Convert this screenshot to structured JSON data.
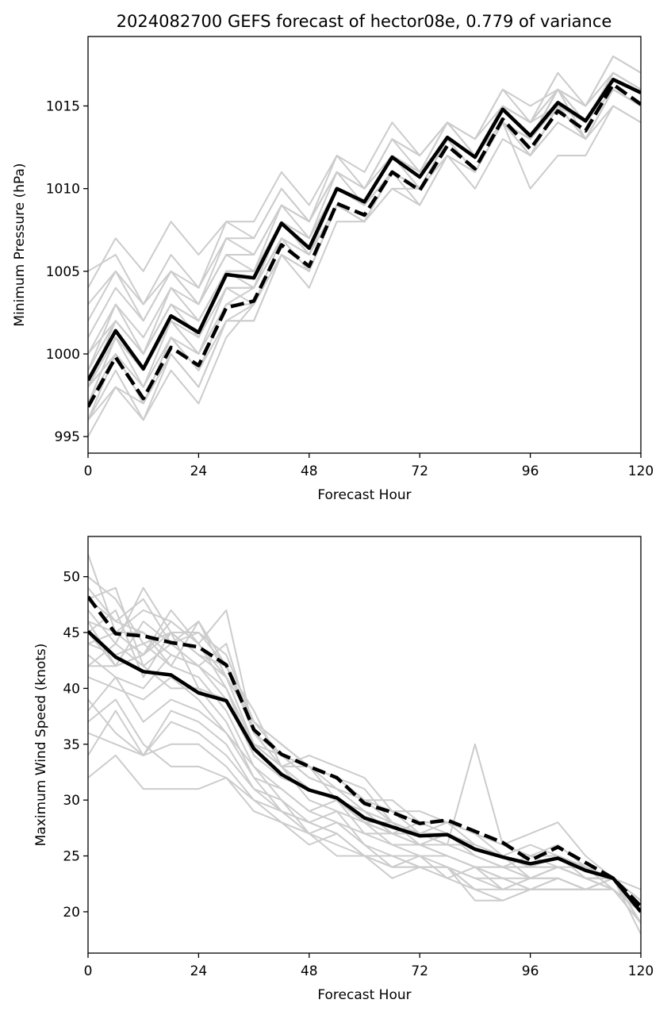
{
  "title": "2024082700 GEFS forecast of hector08e, 0.779 of variance",
  "colors": {
    "member": "#cccccc",
    "highlight": "#000000",
    "background": "#ffffff"
  },
  "chart_data": [
    {
      "type": "line",
      "xlabel": "Forecast Hour",
      "ylabel": "Minimum Pressure (hPa)",
      "xlim": [
        0,
        120
      ],
      "ylim": [
        994,
        1019.2
      ],
      "xticks": [
        0,
        24,
        48,
        72,
        96,
        120
      ],
      "yticks": [
        995,
        1000,
        1005,
        1010,
        1015
      ],
      "grid": false,
      "legend": "none",
      "x": [
        0,
        6,
        12,
        18,
        24,
        30,
        36,
        42,
        48,
        54,
        60,
        66,
        72,
        78,
        84,
        90,
        96,
        102,
        108,
        114,
        120
      ],
      "members": [
        [
          999,
          1002,
          1000,
          1003,
          1002,
          1005,
          1005,
          1008,
          1007,
          1010,
          1009,
          1012,
          1011,
          1014,
          1012,
          1015,
          1013,
          1016,
          1015,
          1017,
          1016
        ],
        [
          998,
          1001,
          999,
          1002,
          1001,
          1004,
          1004,
          1007,
          1006,
          1010,
          1009,
          1012,
          1011,
          1013,
          1012,
          1015,
          1013,
          1015,
          1014,
          1016,
          1015
        ],
        [
          997,
          1000,
          997,
          1001,
          999,
          1003,
          1003,
          1007,
          1005,
          1009,
          1008,
          1011,
          1010,
          1013,
          1011,
          1014,
          1012,
          1015,
          1014,
          1016,
          1015
        ],
        [
          996,
          999,
          996,
          1000,
          998,
          1002,
          1002,
          1006,
          1005,
          1009,
          1008,
          1011,
          1009,
          1012,
          1011,
          1014,
          1012,
          1014,
          1013,
          1016,
          1015
        ],
        [
          995,
          998,
          996,
          999,
          997,
          1001,
          1003,
          1006,
          1004,
          1008,
          1008,
          1010,
          1009,
          1012,
          1010,
          1013,
          1012,
          1015,
          1013,
          1015,
          1014
        ],
        [
          1000,
          1003,
          1001,
          1004,
          1003,
          1006,
          1006,
          1009,
          1008,
          1011,
          1010,
          1013,
          1012,
          1014,
          1013,
          1016,
          1014,
          1017,
          1015,
          1018,
          1017
        ],
        [
          1004,
          1007,
          1005,
          1008,
          1006,
          1008,
          1008,
          1011,
          1009,
          1012,
          1011,
          1014,
          1012,
          1014,
          1013,
          1016,
          1015,
          1016,
          1015,
          1018,
          1017
        ],
        [
          1002,
          1005,
          1003,
          1006,
          1004,
          1007,
          1007,
          1010,
          1008,
          1011,
          1010,
          1013,
          1011,
          1014,
          1012,
          1015,
          1014,
          1016,
          1015,
          1017,
          1016
        ],
        [
          1005,
          1006,
          1003,
          1005,
          1004,
          1008,
          1007,
          1010,
          1008,
          1012,
          1010,
          1013,
          1012,
          1014,
          1013,
          1015,
          1014,
          1016,
          1015,
          1017,
          1016
        ],
        [
          997,
          1001,
          998,
          1002,
          1000,
          1004,
          1004,
          1008,
          1006,
          1010,
          1009,
          1012,
          1010,
          1013,
          1012,
          1015,
          1013,
          1015,
          1014,
          1016,
          1015
        ],
        [
          998,
          1002,
          1000,
          1003,
          1001,
          1005,
          1005,
          1008,
          1007,
          1010,
          1009,
          1012,
          1010,
          1013,
          1012,
          1014,
          1013,
          1016,
          1014,
          1017,
          1016
        ],
        [
          1001,
          1004,
          1002,
          1005,
          1003,
          1006,
          1005,
          1009,
          1007,
          1011,
          1010,
          1012,
          1011,
          1014,
          1012,
          1015,
          1013,
          1016,
          1014,
          1017,
          1016
        ],
        [
          999,
          1003,
          1000,
          1004,
          1002,
          1005,
          1004,
          1008,
          1006,
          1010,
          1009,
          1011,
          1010,
          1013,
          1012,
          1014,
          1013,
          1016,
          1014,
          1017,
          1016
        ],
        [
          996,
          998,
          997,
          1000,
          998,
          1002,
          1003,
          1006,
          1005,
          1009,
          1008,
          1011,
          1010,
          1012,
          1011,
          1014,
          1010,
          1012,
          1012,
          1015,
          1014
        ],
        [
          1003,
          1005,
          1002,
          1005,
          1003,
          1007,
          1006,
          1009,
          1008,
          1011,
          1009,
          1012,
          1011,
          1013,
          1012,
          1015,
          1014,
          1015,
          1014,
          1017,
          1016
        ],
        [
          998,
          1000,
          998,
          1001,
          1000,
          1003,
          1004,
          1007,
          1006,
          1009,
          1008,
          1011,
          1010,
          1013,
          1011,
          1014,
          1012,
          1015,
          1013,
          1016,
          1015
        ],
        [
          997,
          1001,
          999,
          1002,
          1000,
          1004,
          1003,
          1007,
          1005,
          1009,
          1008,
          1011,
          1010,
          1012,
          1011,
          1014,
          1013,
          1016,
          1013,
          1016,
          1015
        ],
        [
          1000,
          1002,
          1000,
          1003,
          1002,
          1005,
          1005,
          1008,
          1007,
          1010,
          1009,
          1012,
          1011,
          1013,
          1012,
          1015,
          1014,
          1017,
          null,
          null,
          null
        ],
        [
          999,
          1002,
          1000,
          1003,
          1002,
          1005,
          1004,
          1008,
          1006,
          1010,
          1009,
          1011,
          1010,
          1013,
          1012,
          1014,
          1013,
          1015,
          1013,
          null,
          null
        ],
        [
          996,
          1000,
          997,
          1001,
          999,
          1002,
          1002,
          1006,
          1005,
          1009,
          1008,
          1010,
          1010,
          1013,
          1011,
          1014,
          1012,
          1014,
          1013,
          1016,
          1015
        ]
      ],
      "series": [
        {
          "values": [
            998.4,
            1001.4,
            999.1,
            1002.3,
            1001.3,
            1004.8,
            1004.6,
            1007.9,
            1006.4,
            1010.0,
            1009.2,
            1011.9,
            1010.7,
            1013.1,
            1011.9,
            1014.8,
            1013.2,
            1015.2,
            1014.1,
            1016.6,
            1015.8
          ],
          "style": "solid"
        },
        {
          "values": [
            996.8,
            999.8,
            997.3,
            1000.4,
            999.3,
            1002.8,
            1003.2,
            1006.6,
            1005.3,
            1009.1,
            1008.4,
            1011.0,
            1009.9,
            1012.6,
            1011.2,
            1014.2,
            1012.4,
            1014.7,
            1013.5,
            1016.3,
            1015.1
          ],
          "style": "dashed"
        }
      ]
    },
    {
      "type": "line",
      "xlabel": "Forecast Hour",
      "ylabel": "Maximum Wind Speed (knots)",
      "xlim": [
        0,
        120
      ],
      "ylim": [
        16.3,
        53.6
      ],
      "xticks": [
        0,
        24,
        48,
        72,
        96,
        120
      ],
      "yticks": [
        20,
        25,
        30,
        35,
        40,
        45,
        50
      ],
      "grid": false,
      "legend": "none",
      "x": [
        0,
        6,
        12,
        18,
        24,
        30,
        36,
        42,
        48,
        54,
        60,
        66,
        72,
        78,
        84,
        90,
        96,
        102,
        108,
        114,
        120
      ],
      "members": [
        [
          52,
          45,
          47,
          46,
          44,
          47,
          36,
          34,
          33,
          30,
          29,
          28,
          27,
          28,
          26,
          25,
          24,
          25,
          24,
          23,
          21
        ],
        [
          50,
          48,
          44,
          45,
          43,
          41,
          37,
          35,
          33,
          32,
          30,
          29,
          28,
          28,
          27,
          26,
          25,
          26,
          24,
          23,
          20
        ],
        [
          49,
          46,
          45,
          43,
          42,
          40,
          35,
          33,
          31,
          30,
          28,
          28,
          27,
          26,
          26,
          25,
          24,
          25,
          24,
          23,
          20
        ],
        [
          48,
          49,
          42,
          44,
          46,
          42,
          36,
          34,
          32,
          31,
          29,
          27,
          28,
          27,
          26,
          25,
          23,
          24,
          23,
          23,
          21
        ],
        [
          47,
          44,
          49,
          45,
          43,
          42,
          38,
          33,
          34,
          33,
          32,
          29,
          29,
          28,
          27,
          25,
          24,
          25,
          23,
          22,
          20
        ],
        [
          46,
          42,
          43,
          47,
          44,
          40,
          34,
          32,
          31,
          30,
          28,
          27,
          26,
          26,
          25,
          24,
          23,
          24,
          23,
          23,
          20
        ],
        [
          45,
          47,
          41,
          45,
          45,
          43,
          37,
          35,
          33,
          31,
          30,
          29,
          27,
          27,
          25,
          24,
          25,
          25,
          24,
          23,
          21
        ],
        [
          44,
          43,
          44,
          42,
          41,
          38,
          33,
          31,
          29,
          28,
          27,
          27,
          26,
          25,
          24,
          23,
          23,
          24,
          23,
          22,
          20
        ],
        [
          43,
          41,
          40,
          43,
          42,
          39,
          35,
          33,
          30,
          29,
          28,
          26,
          26,
          25,
          24,
          24,
          23,
          24,
          23,
          22,
          19
        ],
        [
          42,
          44,
          42,
          40,
          40,
          37,
          32,
          31,
          29,
          30,
          27,
          26,
          25,
          25,
          24,
          23,
          22,
          23,
          22,
          23,
          20
        ],
        [
          41,
          40,
          39,
          41,
          39,
          36,
          33,
          30,
          28,
          29,
          26,
          25,
          25,
          24,
          23,
          22,
          22,
          23,
          22,
          23,
          19
        ],
        [
          39,
          36,
          34,
          38,
          37,
          35,
          31,
          30,
          27,
          28,
          26,
          24,
          24,
          24,
          23,
          23,
          22,
          22,
          22,
          23,
          18
        ],
        [
          38,
          41,
          37,
          39,
          38,
          36,
          32,
          29,
          28,
          27,
          25,
          25,
          24,
          24,
          22,
          21,
          22,
          22,
          22,
          23,
          19
        ],
        [
          37,
          39,
          35,
          33,
          33,
          32,
          29,
          28,
          26,
          27,
          25,
          23,
          24,
          24,
          21,
          21,
          22,
          22,
          22,
          23,
          20
        ],
        [
          36,
          35,
          34,
          35,
          35,
          33,
          30,
          28,
          27,
          26,
          25,
          24,
          25,
          23,
          24,
          22,
          23,
          23,
          22,
          22,
          19
        ],
        [
          34,
          38,
          34,
          37,
          36,
          34,
          31,
          29,
          28,
          27,
          25,
          24,
          24,
          24,
          22,
          null,
          null,
          null,
          null,
          null,
          null
        ],
        [
          32,
          34,
          31,
          31,
          31,
          32,
          30,
          29,
          27,
          25,
          25,
          25,
          24,
          23,
          22,
          22,
          23,
          23,
          22,
          22,
          19
        ],
        [
          45,
          42,
          46,
          44,
          42,
          44,
          36,
          33,
          33,
          32,
          31,
          28,
          27,
          26,
          35,
          26,
          27,
          28,
          25,
          23,
          20
        ],
        [
          46,
          45,
          43,
          46,
          44,
          41,
          35,
          34,
          32,
          31,
          29,
          27,
          26,
          25,
          24,
          24,
          24,
          24,
          24,
          22,
          20
        ],
        [
          44,
          45,
          45,
          42,
          46,
          41,
          37,
          34,
          33,
          32,
          30,
          28,
          26,
          27,
          25,
          24,
          24,
          24,
          23,
          23,
          22
        ],
        [
          42,
          42,
          43,
          45,
          40,
          39,
          34,
          32,
          31,
          30,
          28,
          27,
          27,
          26,
          26,
          25,
          26,
          25,
          24,
          23,
          20
        ],
        [
          48,
          46,
          48,
          44,
          45,
          42,
          37,
          35,
          33,
          32,
          30,
          30,
          28,
          28,
          27,
          26,
          25,
          24,
          23,
          22,
          19
        ]
      ],
      "series": [
        {
          "values": [
            45.1,
            42.8,
            41.5,
            41.2,
            39.6,
            38.9,
            34.6,
            32.3,
            30.9,
            30.2,
            28.4,
            27.6,
            26.8,
            26.9,
            25.6,
            24.9,
            24.3,
            24.8,
            23.7,
            23.0,
            20.0
          ],
          "style": "solid"
        },
        {
          "values": [
            48.2,
            44.9,
            44.7,
            44.1,
            43.7,
            42.1,
            36.3,
            34.1,
            33.0,
            32.0,
            29.7,
            28.9,
            27.9,
            28.2,
            27.2,
            26.2,
            24.6,
            25.8,
            24.4,
            23.0,
            20.5
          ],
          "style": "dashed"
        }
      ]
    }
  ]
}
